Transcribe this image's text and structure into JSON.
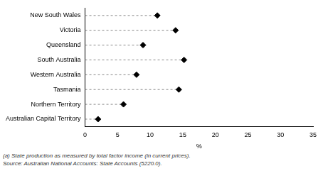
{
  "chart_data": {
    "type": "dot",
    "orientation": "horizontal",
    "categories": [
      "New South Wales",
      "Victoria",
      "Queensland",
      "South Australia",
      "Western Australia",
      "Tasmania",
      "Northern Territory",
      "Australian Capital Territory"
    ],
    "values": [
      11.1,
      13.9,
      8.9,
      15.2,
      7.9,
      14.4,
      5.9,
      2.0
    ],
    "color": "#000000",
    "marker": "diamond",
    "line_style": "dashed",
    "xlabel": "%",
    "xlim": [
      0,
      35
    ],
    "xticks": [
      0,
      5,
      10,
      15,
      20,
      25,
      30,
      35
    ],
    "grid": false,
    "annotations": [
      "(a) State production as measured by total factor income (in current prices).",
      "Source: Australian National Accounts: State Accounts (5220.0)."
    ]
  }
}
